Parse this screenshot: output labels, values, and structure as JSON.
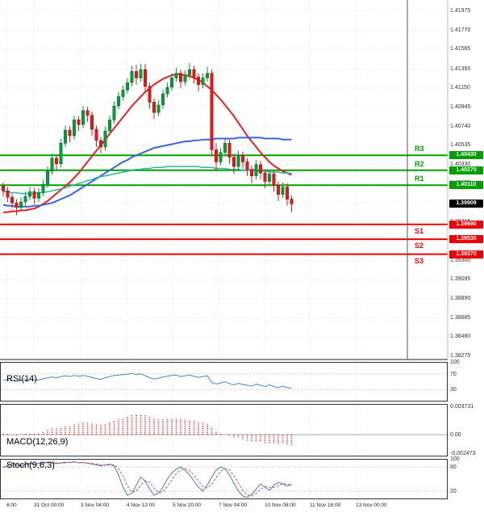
{
  "colors": {
    "bull": "#0a9b3d",
    "bullEdge": "#067a2d",
    "bear": "#e31b1b",
    "bearEdge": "#a51111",
    "resistance": "#00a000",
    "support": "#f00000",
    "last_box": "#000000"
  },
  "indicators": {
    "rsi": {
      "label": "RSI(14)"
    },
    "macd": {
      "label": "MACD(12,26,9)"
    },
    "stoch": {
      "label": "Stoch(9,6,3)"
    }
  },
  "chart_data": [
    {
      "type": "candlestick",
      "pane": "price",
      "title": "",
      "ylim": [
        1.38275,
        1.41975
      ],
      "y_ticks": [
        {
          "label": "1.41975",
          "v": 1.41975
        },
        {
          "label": "1.41770",
          "v": 1.4177
        },
        {
          "label": "1.41565",
          "v": 1.41565
        },
        {
          "label": "1.41355",
          "v": 1.41355
        },
        {
          "label": "1.41150",
          "v": 1.4115
        },
        {
          "label": "1.40945",
          "v": 1.40945
        },
        {
          "label": "1.40740",
          "v": 1.4074
        },
        {
          "label": "1.40535",
          "v": 1.40535
        },
        {
          "label": "1.40330",
          "v": 1.4033
        },
        {
          "label": "1.40125",
          "v": 1.40125
        },
        {
          "label": "1.39920",
          "v": 1.3992
        },
        {
          "label": "1.39715",
          "v": 1.39715
        },
        {
          "label": "1.39510",
          "v": 1.3951
        },
        {
          "label": "1.39300",
          "v": 1.393
        },
        {
          "label": "1.39095",
          "v": 1.39095
        },
        {
          "label": "1.38890",
          "v": 1.3889
        },
        {
          "label": "1.38685",
          "v": 1.38685
        },
        {
          "label": "1.38480",
          "v": 1.3848
        },
        {
          "label": "1.38275",
          "v": 1.38275
        }
      ],
      "x_ticks": [
        "6:00",
        "31 Oct 00:00",
        "3 Nov 04:00",
        "4 Nov 12:00",
        "5 Nov 20:00",
        "7 Nov 04:00",
        "10 Nov 08:00",
        "11 Nov 16:00",
        "13 Nov 00:00"
      ],
      "candles": [
        [
          1.401,
          1.4014,
          1.3999,
          1.4005
        ],
        [
          1.4005,
          1.4009,
          1.3993,
          1.3998
        ],
        [
          1.3998,
          1.4002,
          1.3986,
          1.3992
        ],
        [
          1.3992,
          1.3996,
          1.3979,
          1.3987
        ],
        [
          1.3987,
          1.3998,
          1.3983,
          1.3993
        ],
        [
          1.3993,
          1.4004,
          1.3989,
          1.3999
        ],
        [
          1.3999,
          1.4009,
          1.3995,
          1.4004
        ],
        [
          1.4004,
          1.4008,
          1.3991,
          1.3997
        ],
        [
          1.3997,
          1.4008,
          1.3993,
          1.4003
        ],
        [
          1.4003,
          1.4017,
          1.3999,
          1.4012
        ],
        [
          1.4012,
          1.4031,
          1.4008,
          1.4026
        ],
        [
          1.4026,
          1.4045,
          1.4022,
          1.404
        ],
        [
          1.404,
          1.4044,
          1.4027,
          1.4034
        ],
        [
          1.4034,
          1.4061,
          1.403,
          1.4056
        ],
        [
          1.4056,
          1.4075,
          1.4052,
          1.407
        ],
        [
          1.407,
          1.4074,
          1.4057,
          1.4064
        ],
        [
          1.4064,
          1.4086,
          1.406,
          1.4081
        ],
        [
          1.4081,
          1.4085,
          1.4069,
          1.4076
        ],
        [
          1.4076,
          1.4096,
          1.4072,
          1.4091
        ],
        [
          1.4091,
          1.4095,
          1.4079,
          1.4086
        ],
        [
          1.4086,
          1.409,
          1.4064,
          1.4071
        ],
        [
          1.4071,
          1.4075,
          1.4052,
          1.4059
        ],
        [
          1.4059,
          1.4063,
          1.4045,
          1.4052
        ],
        [
          1.4052,
          1.4074,
          1.4048,
          1.4069
        ],
        [
          1.4069,
          1.4086,
          1.4065,
          1.4081
        ],
        [
          1.4081,
          1.4101,
          1.4077,
          1.4096
        ],
        [
          1.4096,
          1.4111,
          1.4092,
          1.4106
        ],
        [
          1.4106,
          1.4118,
          1.4102,
          1.4113
        ],
        [
          1.4113,
          1.4126,
          1.4109,
          1.4121
        ],
        [
          1.4121,
          1.4139,
          1.4117,
          1.4133
        ],
        [
          1.4133,
          1.414,
          1.4119,
          1.4126
        ],
        [
          1.4126,
          1.4141,
          1.4122,
          1.4135
        ],
        [
          1.4135,
          1.4141,
          1.411,
          1.4117
        ],
        [
          1.4117,
          1.4121,
          1.4093,
          1.41
        ],
        [
          1.41,
          1.4104,
          1.4082,
          1.4089
        ],
        [
          1.4089,
          1.4102,
          1.4085,
          1.4097
        ],
        [
          1.4097,
          1.4114,
          1.4093,
          1.4109
        ],
        [
          1.4109,
          1.4121,
          1.4105,
          1.4116
        ],
        [
          1.4116,
          1.4131,
          1.4112,
          1.4126
        ],
        [
          1.4126,
          1.4137,
          1.4122,
          1.4131
        ],
        [
          1.4131,
          1.4135,
          1.4115,
          1.4122
        ],
        [
          1.4122,
          1.4134,
          1.4118,
          1.4129
        ],
        [
          1.4129,
          1.4142,
          1.4125,
          1.4135
        ],
        [
          1.4135,
          1.4139,
          1.412,
          1.4127
        ],
        [
          1.4127,
          1.4131,
          1.4112,
          1.4119
        ],
        [
          1.4119,
          1.4131,
          1.4115,
          1.4126
        ],
        [
          1.4126,
          1.4138,
          1.4122,
          1.4131
        ],
        [
          1.4131,
          1.4135,
          1.4042,
          1.4049
        ],
        [
          1.4049,
          1.4056,
          1.4026,
          1.4036
        ],
        [
          1.4036,
          1.4051,
          1.4032,
          1.4046
        ],
        [
          1.4046,
          1.4061,
          1.4042,
          1.4056
        ],
        [
          1.4056,
          1.406,
          1.4034,
          1.4041
        ],
        [
          1.4041,
          1.4045,
          1.4023,
          1.4031
        ],
        [
          1.4031,
          1.4048,
          1.4027,
          1.4043
        ],
        [
          1.4043,
          1.4047,
          1.4029,
          1.4036
        ],
        [
          1.4036,
          1.404,
          1.4021,
          1.4028
        ],
        [
          1.4028,
          1.4032,
          1.4013,
          1.4021
        ],
        [
          1.4021,
          1.4038,
          1.4017,
          1.4033
        ],
        [
          1.4033,
          1.4037,
          1.4017,
          1.4024
        ],
        [
          1.4024,
          1.4028,
          1.4008,
          1.4015
        ],
        [
          1.4015,
          1.4028,
          1.4011,
          1.4023
        ],
        [
          1.4023,
          1.4027,
          1.4004,
          1.4011
        ],
        [
          1.4011,
          1.4015,
          1.3994,
          1.4001
        ],
        [
          1.4001,
          1.4014,
          1.3997,
          1.4009
        ],
        [
          1.4009,
          1.4013,
          1.3989,
          1.3996
        ],
        [
          1.3996,
          1.4,
          1.3982,
          1.39909
        ]
      ],
      "overlays": [
        {
          "name": "ma-red",
          "color": "#f21d1d",
          "width": 2,
          "values": [
            1.3982,
            1.3982,
            1.3983,
            1.3983,
            1.3984,
            1.3984,
            1.3985,
            1.3986,
            1.3988,
            1.3991,
            1.3994,
            1.3998,
            1.4002,
            1.4006,
            1.401,
            1.4014,
            1.4019,
            1.4024,
            1.403,
            1.4036,
            1.4042,
            1.4048,
            1.4054,
            1.406,
            1.4066,
            1.4072,
            1.4078,
            1.4084,
            1.409,
            1.4096,
            1.4101,
            1.4106,
            1.4111,
            1.4115,
            1.4119,
            1.4122,
            1.4125,
            1.4127,
            1.4129,
            1.413,
            1.413,
            1.4129,
            1.4128,
            1.4126,
            1.4124,
            1.4121,
            1.4117,
            1.4113,
            1.4108,
            1.4103,
            1.4097,
            1.4091,
            1.4085,
            1.4078,
            1.4071,
            1.4064,
            1.4058,
            1.4052,
            1.4046,
            1.4041,
            1.4036,
            1.4032,
            1.4029,
            1.4026,
            1.4024,
            1.4022
          ]
        },
        {
          "name": "ma-blue",
          "color": "#3b64d8",
          "width": 2,
          "values": [
            1.399,
            1.3989,
            1.3989,
            1.3988,
            1.3988,
            1.3988,
            1.3988,
            1.3989,
            1.3989,
            1.399,
            1.3991,
            1.3992,
            1.3994,
            1.3996,
            1.3998,
            1.4,
            1.4003,
            1.4006,
            1.4009,
            1.4012,
            1.4015,
            1.4018,
            1.4021,
            1.4024,
            1.4027,
            1.403,
            1.4033,
            1.4036,
            1.4038,
            1.4041,
            1.4043,
            1.4045,
            1.4047,
            1.4049,
            1.4051,
            1.4052,
            1.4053,
            1.4054,
            1.4055,
            1.4056,
            1.4057,
            1.4058,
            1.4058,
            1.4059,
            1.4059,
            1.406,
            1.406,
            1.406,
            1.4061,
            1.4061,
            1.4061,
            1.4061,
            1.4061,
            1.4062,
            1.4062,
            1.4062,
            1.4062,
            1.4062,
            1.4062,
            1.4061,
            1.4061,
            1.4061,
            1.4061,
            1.406,
            1.406,
            1.406
          ]
        },
        {
          "name": "ma-teal",
          "color": "#2db5a5",
          "width": 1.5,
          "values": [
            1.4004,
            1.4004,
            1.4003,
            1.4003,
            1.4002,
            1.4002,
            1.4002,
            1.4002,
            1.4003,
            1.4003,
            1.4004,
            1.4005,
            1.4006,
            1.4007,
            1.4008,
            1.401,
            1.4011,
            1.4013,
            1.4014,
            1.4016,
            1.4017,
            1.4019,
            1.402,
            1.4021,
            1.4022,
            1.4023,
            1.4024,
            1.4025,
            1.4026,
            1.4027,
            1.4028,
            1.4028,
            1.4029,
            1.4029,
            1.403,
            1.403,
            1.403,
            1.4031,
            1.4031,
            1.4031,
            1.4031,
            1.4031,
            1.4031,
            1.4031,
            1.4031,
            1.403,
            1.403,
            1.403,
            1.4029,
            1.4029,
            1.4029,
            1.4028,
            1.4028,
            1.4028,
            1.4027,
            1.4027,
            1.4027,
            1.4026,
            1.4026,
            1.4026,
            1.4025,
            1.4025,
            1.4025,
            1.4024,
            1.4024,
            1.4024
          ]
        }
      ],
      "levels": {
        "resistance": [
          {
            "name": "R3",
            "label": "1.40430",
            "v": 1.4043
          },
          {
            "name": "R2",
            "label": "1.40270",
            "v": 1.4027
          },
          {
            "name": "R1",
            "label": "1.40110",
            "v": 1.4011
          }
        ],
        "support": [
          {
            "name": "S1",
            "label": "1.39690",
            "v": 1.3969
          },
          {
            "name": "S2",
            "label": "1.39530",
            "v": 1.3953
          },
          {
            "name": "S3",
            "label": "1.39370",
            "v": 1.3937
          }
        ],
        "last": {
          "label": "1.39909",
          "v": 1.39909
        }
      }
    },
    {
      "type": "line",
      "pane": "rsi",
      "name": "RSI(14)",
      "ylim": [
        0,
        100
      ],
      "color": "#4a86c8",
      "guides": [
        70,
        30
      ],
      "ticks": [
        {
          "label": "100",
          "v": 100
        },
        {
          "label": "70",
          "v": 70
        },
        {
          "label": "30",
          "v": 30
        }
      ],
      "values": [
        54,
        55,
        53,
        52,
        54,
        55,
        56,
        54,
        55,
        57,
        60,
        62,
        60,
        63,
        65,
        63,
        66,
        64,
        66,
        64,
        61,
        58,
        56,
        60,
        63,
        66,
        67,
        68,
        69,
        71,
        68,
        70,
        65,
        60,
        57,
        59,
        62,
        64,
        66,
        67,
        63,
        65,
        67,
        64,
        61,
        63,
        65,
        48,
        44,
        47,
        50,
        45,
        42,
        46,
        43,
        41,
        39,
        44,
        41,
        38,
        42,
        38,
        35,
        39,
        35,
        34
      ]
    },
    {
      "type": "bar",
      "pane": "macd",
      "name": "MACD(12,26,9)",
      "ylim": [
        -0.00285,
        0.004
      ],
      "color": "#e02020",
      "ticks": [
        {
          "label": "0.003731",
          "v": 0.003731
        },
        {
          "label": "0.00",
          "v": 0
        },
        {
          "label": "-0.002473",
          "v": -0.002473
        }
      ],
      "values": [
        0.0001,
        0.0001,
        0.0,
        -0.0001,
        0.0,
        0.0001,
        0.0002,
        0.0001,
        0.0002,
        0.0004,
        0.0006,
        0.0008,
        0.0008,
        0.001,
        0.0012,
        0.0012,
        0.0014,
        0.0015,
        0.0016,
        0.0016,
        0.0015,
        0.0014,
        0.0013,
        0.0014,
        0.0016,
        0.0018,
        0.002,
        0.0022,
        0.0024,
        0.0025,
        0.0026,
        0.0026,
        0.0025,
        0.0023,
        0.0021,
        0.002,
        0.002,
        0.0021,
        0.0021,
        0.0022,
        0.0021,
        0.002,
        0.0019,
        0.0018,
        0.0017,
        0.0016,
        0.0015,
        0.001,
        0.0005,
        0.0002,
        0.0,
        -0.0002,
        -0.0004,
        -0.0005,
        -0.0006,
        -0.0008,
        -0.0009,
        -0.0009,
        -0.001,
        -0.0011,
        -0.0011,
        -0.0012,
        -0.0013,
        -0.0012,
        -0.0013,
        -0.0014
      ]
    },
    {
      "type": "line",
      "pane": "stoch",
      "name": "Stoch(9,6,3)",
      "ylim": [
        0,
        100
      ],
      "guides": [
        80,
        20
      ],
      "ticks": [
        {
          "label": "100",
          "v": 100
        },
        {
          "label": "80",
          "v": 80
        },
        {
          "label": "20",
          "v": 20
        }
      ],
      "series": [
        {
          "name": "K",
          "color": "#3f7fd0",
          "dash": false,
          "values": [
            78,
            84,
            88,
            85,
            82,
            86,
            90,
            87,
            89,
            91,
            92,
            90,
            88,
            90,
            92,
            91,
            93,
            90,
            91,
            89,
            87,
            85,
            83,
            85,
            87,
            82,
            60,
            30,
            10,
            15,
            35,
            55,
            45,
            25,
            10,
            15,
            30,
            50,
            65,
            75,
            80,
            72,
            60,
            45,
            30,
            20,
            35,
            55,
            72,
            80,
            75,
            60,
            40,
            20,
            8,
            5,
            12,
            25,
            38,
            30,
            22,
            35,
            42,
            38,
            33,
            36
          ]
        },
        {
          "name": "D",
          "color": "#e05252",
          "dash": true,
          "values": [
            80,
            81,
            83,
            86,
            85,
            84,
            86,
            88,
            88,
            89,
            90,
            91,
            90,
            89,
            90,
            91,
            92,
            91,
            91,
            90,
            89,
            87,
            85,
            84,
            85,
            85,
            76,
            57,
            33,
            18,
            20,
            35,
            45,
            42,
            27,
            17,
            18,
            32,
            48,
            63,
            73,
            76,
            71,
            59,
            45,
            32,
            28,
            37,
            54,
            69,
            76,
            72,
            58,
            40,
            22,
            11,
            8,
            14,
            25,
            31,
            30,
            29,
            33,
            38,
            38,
            36
          ]
        }
      ]
    }
  ]
}
